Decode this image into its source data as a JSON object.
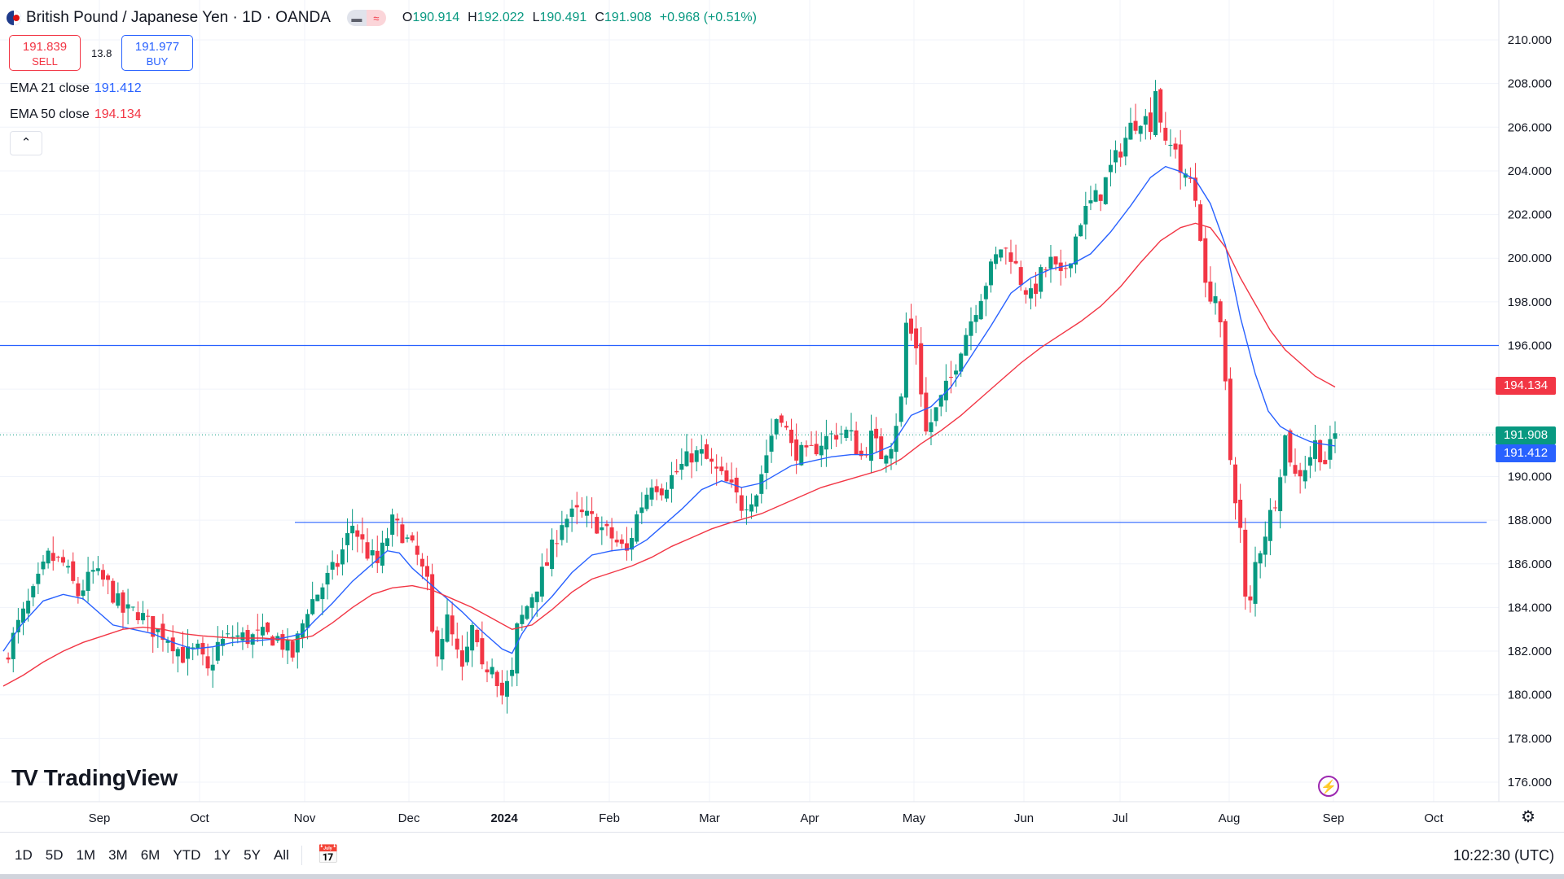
{
  "header": {
    "title": "British Pound / Japanese Yen · 1D · OANDA",
    "open_label": "O",
    "open": "190.914",
    "high_label": "H",
    "high": "192.022",
    "low_label": "L",
    "low": "190.491",
    "close_label": "C",
    "close": "191.908",
    "change": "+0.968 (+0.51%)"
  },
  "trade": {
    "sell_price": "191.839",
    "sell_label": "SELL",
    "spread": "13.8",
    "buy_price": "191.977",
    "buy_label": "BUY"
  },
  "indicators": {
    "ema21_label": "EMA 21 close",
    "ema21_value": "191.412",
    "ema50_label": "EMA 50 close",
    "ema50_value": "194.134",
    "collapse_icon": "chevron-up-icon"
  },
  "price_tags": {
    "ema50": "194.134",
    "last": "191.908",
    "ema21": "191.412"
  },
  "logo": {
    "text": "TradingView",
    "mark": "TV"
  },
  "toolbar": {
    "ranges": [
      "1D",
      "5D",
      "1M",
      "3M",
      "6M",
      "YTD",
      "1Y",
      "5Y",
      "All"
    ],
    "time": "10:22:30 (UTC)"
  },
  "colors": {
    "up": "#089981",
    "down": "#f23645",
    "ema21": "#2962ff",
    "ema50": "#f23645",
    "hline": "#2962ff"
  },
  "chart_data": {
    "type": "candlestick",
    "symbol": "British Pound / Japanese Yen",
    "interval": "1D",
    "y_axis": {
      "min": 176,
      "max": 210,
      "step": 2,
      "side": "right",
      "ticks": [
        "210.000",
        "208.000",
        "206.000",
        "204.000",
        "202.000",
        "200.000",
        "198.000",
        "196.000",
        "194.000",
        "192.000",
        "190.000",
        "188.000",
        "186.000",
        "184.000",
        "182.000",
        "180.000",
        "178.000",
        "176.000"
      ]
    },
    "x_axis": {
      "ticks": [
        "Sep",
        "Oct",
        "Nov",
        "Dec",
        "2024",
        "Feb",
        "Mar",
        "Apr",
        "May",
        "Jun",
        "Jul",
        "Aug",
        "Sep",
        "Oct"
      ],
      "bold": [
        "2024"
      ]
    },
    "horizontal_lines": [
      196.0,
      187.9
    ],
    "last_price": 191.908,
    "series": [
      {
        "name": "EMA 21 close",
        "color": "#2962ff",
        "points": [
          [
            0,
            182.0
          ],
          [
            18,
            183.2
          ],
          [
            40,
            184.3
          ],
          [
            60,
            184.6
          ],
          [
            80,
            184.4
          ],
          [
            100,
            183.6
          ],
          [
            110,
            183.2
          ],
          [
            130,
            183.0
          ],
          [
            150,
            182.8
          ],
          [
            170,
            182.4
          ],
          [
            190,
            182.1
          ],
          [
            210,
            182.2
          ],
          [
            230,
            182.4
          ],
          [
            260,
            182.5
          ],
          [
            280,
            182.6
          ],
          [
            300,
            182.8
          ],
          [
            310,
            183.3
          ],
          [
            330,
            184.2
          ],
          [
            350,
            185.2
          ],
          [
            370,
            186.0
          ],
          [
            385,
            186.6
          ],
          [
            397,
            186.5
          ],
          [
            410,
            185.8
          ],
          [
            425,
            185.2
          ],
          [
            440,
            184.6
          ],
          [
            460,
            183.8
          ],
          [
            480,
            182.9
          ],
          [
            500,
            182.1
          ],
          [
            510,
            181.9
          ],
          [
            520,
            182.8
          ],
          [
            535,
            183.8
          ],
          [
            550,
            184.5
          ],
          [
            570,
            185.6
          ],
          [
            590,
            186.4
          ],
          [
            610,
            186.6
          ],
          [
            630,
            186.7
          ],
          [
            645,
            187.1
          ],
          [
            660,
            187.7
          ],
          [
            680,
            188.5
          ],
          [
            700,
            189.4
          ],
          [
            720,
            189.8
          ],
          [
            740,
            189.5
          ],
          [
            760,
            189.7
          ],
          [
            775,
            190.1
          ],
          [
            790,
            190.5
          ],
          [
            810,
            190.7
          ],
          [
            830,
            190.9
          ],
          [
            850,
            191.0
          ],
          [
            870,
            191.0
          ],
          [
            890,
            191.4
          ],
          [
            910,
            192.8
          ],
          [
            930,
            193.2
          ],
          [
            950,
            194.1
          ],
          [
            970,
            195.5
          ],
          [
            990,
            196.9
          ],
          [
            1010,
            198.4
          ],
          [
            1030,
            199.1
          ],
          [
            1050,
            199.5
          ],
          [
            1070,
            199.7
          ],
          [
            1090,
            200.2
          ],
          [
            1110,
            201.2
          ],
          [
            1130,
            202.4
          ],
          [
            1150,
            203.7
          ],
          [
            1165,
            204.2
          ],
          [
            1178,
            204.0
          ],
          [
            1195,
            203.6
          ],
          [
            1210,
            202.5
          ],
          [
            1225,
            200.6
          ],
          [
            1240,
            197.3
          ],
          [
            1255,
            194.7
          ],
          [
            1268,
            193.0
          ],
          [
            1280,
            192.3
          ],
          [
            1295,
            191.9
          ],
          [
            1310,
            191.6
          ],
          [
            1320,
            191.5
          ],
          [
            1335,
            191.4
          ]
        ]
      },
      {
        "name": "EMA 50 close",
        "color": "#f23645",
        "points": [
          [
            0,
            180.4
          ],
          [
            20,
            180.9
          ],
          [
            40,
            181.5
          ],
          [
            60,
            182.0
          ],
          [
            80,
            182.4
          ],
          [
            100,
            182.7
          ],
          [
            120,
            183.0
          ],
          [
            140,
            183.1
          ],
          [
            160,
            183.0
          ],
          [
            180,
            182.8
          ],
          [
            200,
            182.7
          ],
          [
            230,
            182.6
          ],
          [
            260,
            182.6
          ],
          [
            290,
            182.5
          ],
          [
            310,
            182.7
          ],
          [
            330,
            183.3
          ],
          [
            350,
            184.0
          ],
          [
            370,
            184.6
          ],
          [
            390,
            184.9
          ],
          [
            410,
            185.0
          ],
          [
            430,
            184.8
          ],
          [
            450,
            184.4
          ],
          [
            470,
            184.0
          ],
          [
            490,
            183.5
          ],
          [
            510,
            183.0
          ],
          [
            530,
            183.2
          ],
          [
            550,
            183.9
          ],
          [
            570,
            184.7
          ],
          [
            590,
            185.3
          ],
          [
            610,
            185.6
          ],
          [
            630,
            185.9
          ],
          [
            650,
            186.3
          ],
          [
            670,
            186.8
          ],
          [
            690,
            187.2
          ],
          [
            710,
            187.6
          ],
          [
            730,
            187.9
          ],
          [
            760,
            188.3
          ],
          [
            790,
            188.9
          ],
          [
            820,
            189.5
          ],
          [
            850,
            189.9
          ],
          [
            880,
            190.3
          ],
          [
            900,
            190.8
          ],
          [
            920,
            191.5
          ],
          [
            940,
            192.1
          ],
          [
            960,
            192.8
          ],
          [
            980,
            193.6
          ],
          [
            1000,
            194.4
          ],
          [
            1020,
            195.2
          ],
          [
            1040,
            195.9
          ],
          [
            1060,
            196.5
          ],
          [
            1080,
            197.1
          ],
          [
            1100,
            197.8
          ],
          [
            1120,
            198.7
          ],
          [
            1140,
            199.8
          ],
          [
            1160,
            200.8
          ],
          [
            1180,
            201.4
          ],
          [
            1195,
            201.6
          ],
          [
            1210,
            201.4
          ],
          [
            1225,
            200.5
          ],
          [
            1240,
            199.1
          ],
          [
            1255,
            197.9
          ],
          [
            1270,
            196.7
          ],
          [
            1285,
            195.8
          ],
          [
            1300,
            195.2
          ],
          [
            1315,
            194.6
          ],
          [
            1335,
            194.1
          ]
        ]
      },
      {
        "name": "price",
        "color": "#089981",
        "points": [
          [
            0,
            181.5
          ],
          [
            15,
            183.2
          ],
          [
            30,
            184.6
          ],
          [
            45,
            186.3
          ],
          [
            60,
            186.0
          ],
          [
            75,
            184.6
          ],
          [
            90,
            185.6
          ],
          [
            105,
            185.0
          ],
          [
            120,
            183.8
          ],
          [
            135,
            183.8
          ],
          [
            150,
            183.0
          ],
          [
            165,
            182.7
          ],
          [
            180,
            181.8
          ],
          [
            195,
            182.0
          ],
          [
            205,
            181.0
          ],
          [
            215,
            182.3
          ],
          [
            230,
            182.7
          ],
          [
            245,
            182.6
          ],
          [
            260,
            182.7
          ],
          [
            275,
            182.6
          ],
          [
            290,
            181.8
          ],
          [
            305,
            184.0
          ],
          [
            320,
            185.0
          ],
          [
            335,
            186.0
          ],
          [
            350,
            187.8
          ],
          [
            365,
            186.5
          ],
          [
            375,
            186.0
          ],
          [
            390,
            187.9
          ],
          [
            400,
            187.4
          ],
          [
            415,
            186.3
          ],
          [
            425,
            185.0
          ],
          [
            432,
            181.8
          ],
          [
            445,
            183.4
          ],
          [
            460,
            181.0
          ],
          [
            470,
            183.0
          ],
          [
            480,
            181.0
          ],
          [
            490,
            181.6
          ],
          [
            500,
            180.0
          ],
          [
            510,
            180.9
          ],
          [
            515,
            183.0
          ],
          [
            530,
            184.6
          ],
          [
            545,
            186.0
          ],
          [
            560,
            188.0
          ],
          [
            575,
            188.3
          ],
          [
            590,
            188.0
          ],
          [
            600,
            187.6
          ],
          [
            610,
            187.2
          ],
          [
            625,
            186.5
          ],
          [
            635,
            188.2
          ],
          [
            650,
            189.8
          ],
          [
            660,
            189.5
          ],
          [
            675,
            190.2
          ],
          [
            690,
            191.0
          ],
          [
            700,
            191.0
          ],
          [
            715,
            190.2
          ],
          [
            730,
            189.4
          ],
          [
            740,
            188.7
          ],
          [
            755,
            189.3
          ],
          [
            770,
            191.9
          ],
          [
            778,
            193.2
          ],
          [
            790,
            191.3
          ],
          [
            805,
            190.9
          ],
          [
            820,
            191.6
          ],
          [
            835,
            192.0
          ],
          [
            848,
            192.0
          ],
          [
            860,
            190.9
          ],
          [
            870,
            191.8
          ],
          [
            880,
            191.0
          ],
          [
            890,
            191.6
          ],
          [
            900,
            193.5
          ],
          [
            905,
            197.0
          ],
          [
            915,
            196.0
          ],
          [
            925,
            192.0
          ],
          [
            935,
            193.0
          ],
          [
            950,
            194.5
          ],
          [
            960,
            196.0
          ],
          [
            975,
            197.8
          ],
          [
            990,
            199.5
          ],
          [
            1000,
            200.5
          ],
          [
            1010,
            200.2
          ],
          [
            1020,
            199.0
          ],
          [
            1030,
            198.2
          ],
          [
            1040,
            199.2
          ],
          [
            1050,
            199.8
          ],
          [
            1060,
            199.0
          ],
          [
            1070,
            200.2
          ],
          [
            1080,
            201.8
          ],
          [
            1090,
            202.5
          ],
          [
            1100,
            203.0
          ],
          [
            1110,
            204.1
          ],
          [
            1120,
            205.0
          ],
          [
            1130,
            206.0
          ],
          [
            1140,
            206.5
          ],
          [
            1150,
            206.2
          ],
          [
            1155,
            207.8
          ],
          [
            1165,
            205.0
          ],
          [
            1175,
            205.2
          ],
          [
            1182,
            203.5
          ],
          [
            1190,
            203.6
          ],
          [
            1198,
            202.2
          ],
          [
            1205,
            198.5
          ],
          [
            1215,
            198.3
          ],
          [
            1222,
            196.0
          ],
          [
            1230,
            190.8
          ],
          [
            1240,
            187.5
          ],
          [
            1247,
            183.0
          ],
          [
            1255,
            186.0
          ],
          [
            1265,
            187.5
          ],
          [
            1275,
            189.0
          ],
          [
            1285,
            191.8
          ],
          [
            1295,
            190.0
          ],
          [
            1305,
            190.5
          ],
          [
            1315,
            191.5
          ],
          [
            1325,
            190.7
          ],
          [
            1335,
            191.9
          ]
        ]
      }
    ]
  }
}
